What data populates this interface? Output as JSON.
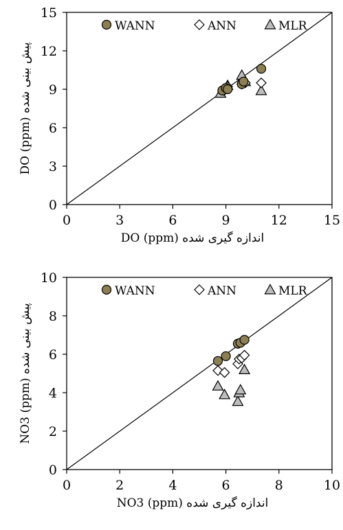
{
  "chart_data": [
    {
      "type": "scatter",
      "xlabel": "DO (ppm) اندازه گیری شده",
      "ylabel": "DO (ppm) پیش بینی شده",
      "xlim": [
        0,
        15
      ],
      "ylim": [
        0,
        15
      ],
      "xticks": [
        "0",
        "3",
        "6",
        "9",
        "12",
        "15"
      ],
      "yticks": [
        "0",
        "3",
        "6",
        "9",
        "12",
        "15"
      ],
      "legend_position": "top",
      "reference_line": "1:1",
      "grid": false,
      "series": [
        {
          "name": "WANN",
          "marker": "circle",
          "color": "#8c7f54",
          "x": [
            8.8,
            9.0,
            9.1,
            9.9,
            10.0,
            11.0
          ],
          "y": [
            8.9,
            9.1,
            9.0,
            9.4,
            9.6,
            10.6
          ]
        },
        {
          "name": "ANN",
          "marker": "diamond",
          "color": "#ffffff",
          "x": [
            8.9,
            9.0,
            9.1,
            9.9,
            10.1,
            11.0
          ],
          "y": [
            8.9,
            9.1,
            9.2,
            9.4,
            9.5,
            9.5
          ]
        },
        {
          "name": "MLR",
          "marker": "triangle",
          "color": "#bdbdbd",
          "x": [
            8.7,
            8.9,
            9.1,
            9.9,
            10.1,
            11.0
          ],
          "y": [
            8.7,
            9.0,
            9.3,
            10.1,
            9.6,
            8.9
          ]
        }
      ]
    },
    {
      "type": "scatter",
      "xlabel": "NO3 (ppm) اندازه گیری شده",
      "ylabel": "NO3 (ppm) پیش بینی شده",
      "xlim": [
        0,
        10
      ],
      "ylim": [
        0,
        10
      ],
      "xticks": [
        "0",
        "2",
        "4",
        "6",
        "8",
        "10"
      ],
      "yticks": [
        "0",
        "2",
        "4",
        "6",
        "8",
        "10"
      ],
      "legend_position": "top",
      "reference_line": "1:1",
      "grid": false,
      "series": [
        {
          "name": "WANN",
          "marker": "circle",
          "color": "#8c7f54",
          "x": [
            5.7,
            6.0,
            6.45,
            6.55,
            6.7
          ],
          "y": [
            5.65,
            5.9,
            6.55,
            6.6,
            6.75
          ]
        },
        {
          "name": "ANN",
          "marker": "diamond",
          "color": "#ffffff",
          "x": [
            5.7,
            5.95,
            6.45,
            6.5,
            6.6,
            6.7
          ],
          "y": [
            5.15,
            5.05,
            5.5,
            5.75,
            5.8,
            5.95
          ]
        },
        {
          "name": "MLR",
          "marker": "triangle",
          "color": "#bdbdbd",
          "x": [
            5.7,
            5.95,
            6.45,
            6.5,
            6.55,
            6.7
          ],
          "y": [
            4.35,
            3.9,
            3.55,
            4.0,
            4.15,
            5.2
          ]
        }
      ]
    }
  ]
}
